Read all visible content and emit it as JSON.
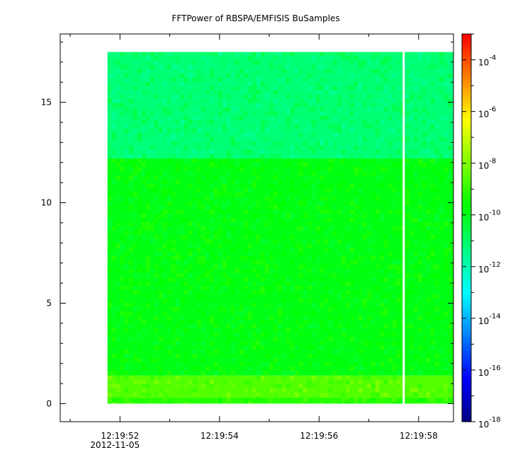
{
  "chart_data": {
    "type": "heatmap",
    "title": "FFTPower of RBSPA/EMFISIS  BuSamples",
    "xlabel": "",
    "ylabel": "",
    "x_ticks": [
      {
        "value": "12:19:52",
        "sub": "2012-11-05"
      },
      {
        "value": "12:19:54",
        "sub": ""
      },
      {
        "value": "12:19:56",
        "sub": ""
      },
      {
        "value": "12:19:58",
        "sub": ""
      }
    ],
    "x_range_seconds": [
      50.8,
      58.7
    ],
    "y_ticks": [
      "0",
      "5",
      "10",
      "15"
    ],
    "ylim": [
      -0.9,
      18.4
    ],
    "data_x_range": [
      51.75,
      58.7
    ],
    "data_y_range": [
      0.0,
      17.5
    ],
    "gap_at_seconds": 57.7,
    "bands": [
      {
        "y_from": 0.0,
        "y_to": 0.3,
        "level_log10": -9.2
      },
      {
        "y_from": 0.3,
        "y_to": 1.4,
        "level_log10": -8.6
      },
      {
        "y_from": 1.4,
        "y_to": 12.2,
        "level_log10": -9.9
      },
      {
        "y_from": 12.2,
        "y_to": 17.5,
        "level_log10": -11.2
      }
    ],
    "colorbar": {
      "scale": "log",
      "range": [
        1e-18,
        0.001
      ],
      "tick_labels": [
        {
          "base": "10",
          "exp": "-4"
        },
        {
          "base": "10",
          "exp": "-6"
        },
        {
          "base": "10",
          "exp": "-8"
        },
        {
          "base": "10",
          "exp": "-10"
        },
        {
          "base": "10",
          "exp": "-12"
        },
        {
          "base": "10",
          "exp": "-14"
        },
        {
          "base": "10",
          "exp": "-16"
        },
        {
          "base": "10",
          "exp": "-18"
        }
      ],
      "tick_exponents": [
        -4,
        -6,
        -8,
        -10,
        -12,
        -14,
        -16,
        -18
      ],
      "colormap": [
        "#00007f",
        "#0000ff",
        "#007fff",
        "#00ffff",
        "#00ff7f",
        "#00ff00",
        "#7fff00",
        "#ffff00",
        "#ff7f00",
        "#ff0000"
      ]
    },
    "grid": false
  }
}
